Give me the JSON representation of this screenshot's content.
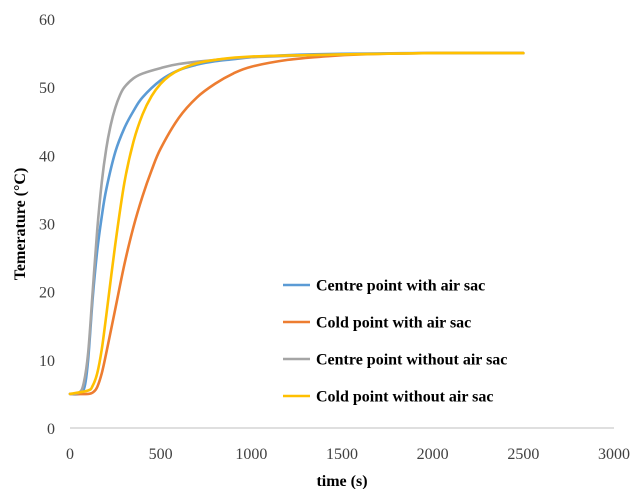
{
  "chart_data": {
    "type": "line",
    "title": "",
    "xlabel": "time (s)",
    "ylabel": "Temerature (°C)",
    "xlim": [
      0,
      3000
    ],
    "ylim": [
      0,
      60
    ],
    "xticks": [
      0,
      500,
      1000,
      1500,
      2000,
      2500,
      3000
    ],
    "yticks": [
      0,
      10,
      20,
      30,
      40,
      50,
      60
    ],
    "grid": false,
    "legend_position": "bottom-right",
    "series": [
      {
        "name": "Centre point with air sac",
        "color": "#5b9bd5",
        "points": [
          [
            0,
            5
          ],
          [
            50,
            5
          ],
          [
            80,
            6
          ],
          [
            100,
            10
          ],
          [
            125,
            19
          ],
          [
            150,
            26
          ],
          [
            175,
            31
          ],
          [
            200,
            35
          ],
          [
            250,
            40.5
          ],
          [
            300,
            44
          ],
          [
            350,
            46.5
          ],
          [
            400,
            48.5
          ],
          [
            500,
            51
          ],
          [
            600,
            52.5
          ],
          [
            700,
            53.3
          ],
          [
            800,
            53.8
          ],
          [
            900,
            54.1
          ],
          [
            1000,
            54.4
          ],
          [
            1200,
            54.7
          ],
          [
            1500,
            54.9
          ],
          [
            2000,
            55
          ],
          [
            2500,
            55
          ]
        ]
      },
      {
        "name": "Cold point with air sac",
        "color": "#ed7d31",
        "points": [
          [
            0,
            5
          ],
          [
            100,
            5
          ],
          [
            130,
            5.3
          ],
          [
            150,
            6
          ],
          [
            175,
            8
          ],
          [
            200,
            11
          ],
          [
            250,
            17.5
          ],
          [
            300,
            24
          ],
          [
            350,
            29.5
          ],
          [
            400,
            34
          ],
          [
            450,
            37.8
          ],
          [
            500,
            41
          ],
          [
            600,
            45.5
          ],
          [
            700,
            48.5
          ],
          [
            800,
            50.5
          ],
          [
            900,
            52
          ],
          [
            1000,
            53
          ],
          [
            1200,
            54
          ],
          [
            1400,
            54.5
          ],
          [
            1600,
            54.8
          ],
          [
            2000,
            55
          ],
          [
            2500,
            55
          ]
        ]
      },
      {
        "name": "Centre point without air sac",
        "color": "#a5a5a5",
        "points": [
          [
            0,
            5
          ],
          [
            50,
            5.2
          ],
          [
            75,
            6.5
          ],
          [
            100,
            11
          ],
          [
            125,
            20
          ],
          [
            150,
            29
          ],
          [
            175,
            36
          ],
          [
            200,
            41
          ],
          [
            225,
            44.5
          ],
          [
            250,
            47
          ],
          [
            275,
            48.8
          ],
          [
            300,
            50
          ],
          [
            350,
            51.3
          ],
          [
            400,
            52
          ],
          [
            500,
            52.8
          ],
          [
            600,
            53.4
          ],
          [
            800,
            54
          ],
          [
            1000,
            54.4
          ],
          [
            1500,
            54.8
          ],
          [
            2000,
            55
          ],
          [
            2500,
            55
          ]
        ]
      },
      {
        "name": "Cold point without air sac",
        "color": "#ffc000",
        "points": [
          [
            0,
            5
          ],
          [
            100,
            5.5
          ],
          [
            125,
            6.2
          ],
          [
            150,
            8
          ],
          [
            175,
            11.5
          ],
          [
            200,
            16.5
          ],
          [
            250,
            27
          ],
          [
            300,
            36
          ],
          [
            350,
            42
          ],
          [
            400,
            46
          ],
          [
            450,
            48.7
          ],
          [
            500,
            50.5
          ],
          [
            550,
            51.7
          ],
          [
            600,
            52.5
          ],
          [
            700,
            53.5
          ],
          [
            800,
            54
          ],
          [
            1000,
            54.5
          ],
          [
            1500,
            54.8
          ],
          [
            2000,
            55
          ],
          [
            2500,
            55
          ]
        ]
      }
    ]
  }
}
